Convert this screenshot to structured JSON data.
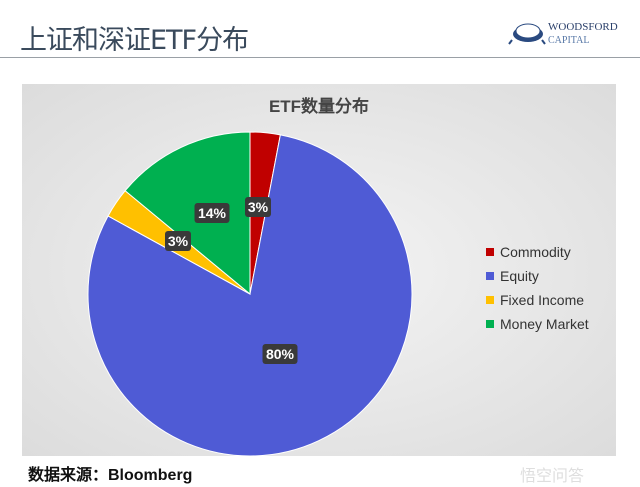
{
  "slide": {
    "title": "上证和深证ETF分布",
    "logo": {
      "line1": "WOODSFORD",
      "line2": "CAPITAL"
    },
    "source": "数据来源：Bloomberg",
    "watermark": "悟空问答"
  },
  "chart_data": {
    "type": "pie",
    "title": "ETF数量分布",
    "categories": [
      "Commodity",
      "Equity",
      "Fixed Income",
      "Money Market"
    ],
    "values": [
      3,
      80,
      3,
      14
    ],
    "labels": [
      "3%",
      "80%",
      "3%",
      "14%"
    ],
    "colors": [
      "#c00000",
      "#4f5bd5",
      "#ffc000",
      "#00b050"
    ],
    "legend_placement": "right",
    "start": "top, clockwise"
  }
}
